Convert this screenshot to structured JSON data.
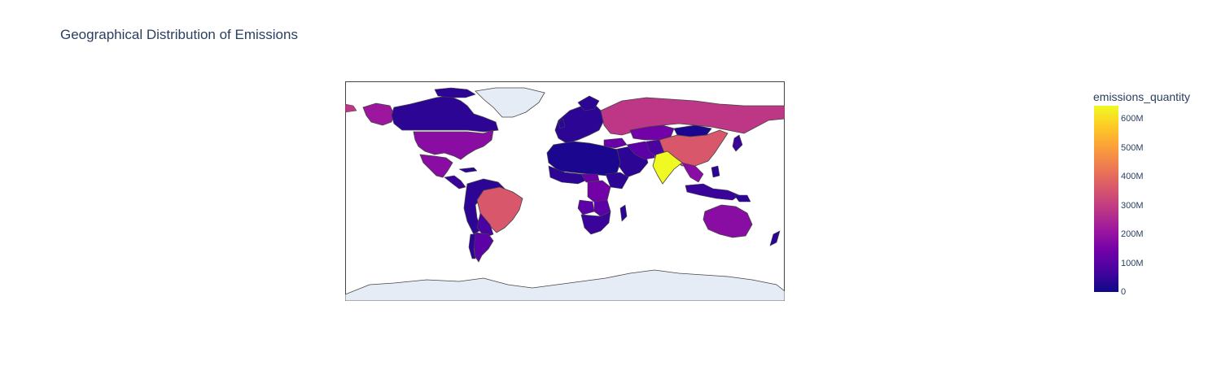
{
  "chart": {
    "title": "Geographical Distribution of Emissions"
  },
  "colorbar": {
    "title": "emissions_quantity",
    "ticks": [
      "0",
      "100M",
      "200M",
      "300M",
      "400M",
      "500M",
      "600M"
    ],
    "tick_values": [
      0,
      100000000,
      200000000,
      300000000,
      400000000,
      500000000,
      600000000
    ],
    "range": [
      0,
      645000000
    ],
    "colorscale": [
      "#0d0887",
      "#46039f",
      "#7201a8",
      "#9c179e",
      "#bd3786",
      "#d8576b",
      "#ed7953",
      "#fb9f3a",
      "#fdca26",
      "#f0f921"
    ]
  },
  "chart_data": {
    "type": "choropleth",
    "title": "Geographical Distribution of Emissions",
    "value_label": "emissions_quantity",
    "projection": "equirectangular",
    "color_range": [
      0,
      645000000
    ],
    "no_data_color": "#e5ecf6",
    "regions": [
      {
        "name": "India",
        "value": 640000000
      },
      {
        "name": "Brazil",
        "value": 400000000
      },
      {
        "name": "China",
        "value": 380000000
      },
      {
        "name": "Russia",
        "value": 300000000
      },
      {
        "name": "United States",
        "value": 210000000
      },
      {
        "name": "Mexico",
        "value": 200000000
      },
      {
        "name": "Australia",
        "value": 190000000
      },
      {
        "name": "Alaska (United States)",
        "value": 210000000
      },
      {
        "name": "Canada",
        "value": 60000000
      },
      {
        "name": "Argentina",
        "value": 130000000
      },
      {
        "name": "Democratic Republic of the Congo",
        "value": 150000000
      },
      {
        "name": "Central African Republic",
        "value": 140000000
      },
      {
        "name": "Angola",
        "value": 120000000
      },
      {
        "name": "Zambia",
        "value": 110000000
      },
      {
        "name": "Botswana",
        "value": 100000000
      },
      {
        "name": "Southeast Asia",
        "value": 200000000
      },
      {
        "name": "Kazakhstan",
        "value": 120000000
      },
      {
        "name": "Mongolia",
        "value": 50000000
      },
      {
        "name": "Turkey",
        "value": 170000000
      },
      {
        "name": "Iran",
        "value": 140000000
      },
      {
        "name": "Pakistan",
        "value": 130000000
      },
      {
        "name": "Indonesia",
        "value": 90000000
      },
      {
        "name": "Japan",
        "value": 70000000
      },
      {
        "name": "Sahara region",
        "value": 30000000
      },
      {
        "name": "Europe",
        "value": 60000000
      },
      {
        "name": "Greenland",
        "value": null
      },
      {
        "name": "Antarctica",
        "value": null
      }
    ]
  }
}
